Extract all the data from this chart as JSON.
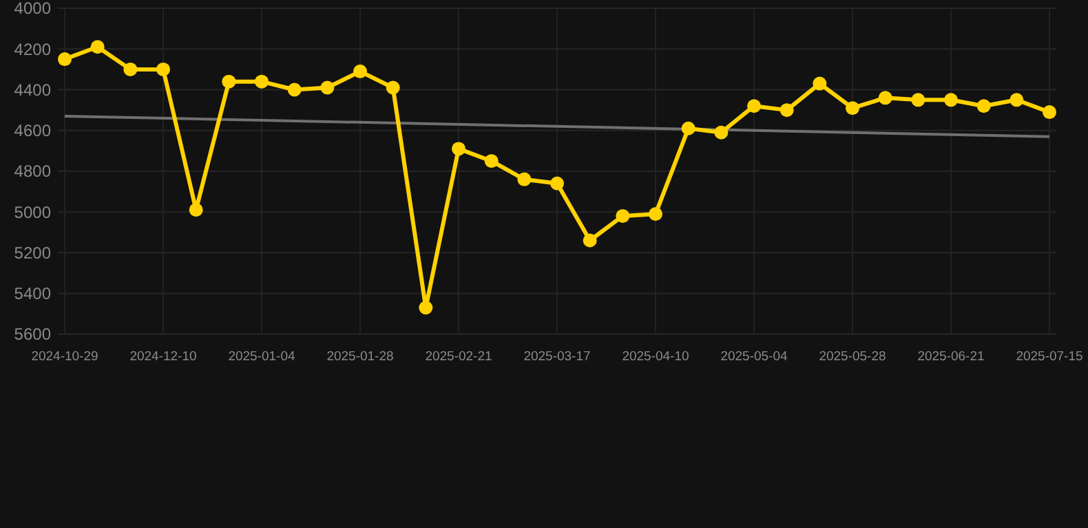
{
  "chart_data": {
    "type": "line",
    "categories": [
      "2024-10-29",
      null,
      null,
      "2024-12-10",
      null,
      null,
      "2025-01-04",
      null,
      null,
      "2025-01-28",
      null,
      null,
      "2025-02-21",
      null,
      null,
      "2025-03-17",
      null,
      null,
      "2025-04-10",
      null,
      null,
      "2025-05-04",
      null,
      null,
      "2025-05-28",
      null,
      null,
      "2025-06-21",
      null,
      null,
      "2025-07-15"
    ],
    "series": [
      {
        "color": "#ffd200",
        "values": [
          4250,
          4190,
          4300,
          4300,
          4990,
          4360,
          4360,
          4400,
          4390,
          4310,
          4390,
          5470,
          4690,
          4750,
          4840,
          4860,
          5140,
          5020,
          5010,
          4590,
          4610,
          4480,
          4500,
          4370,
          4490,
          4440,
          4450,
          4450,
          4480,
          4450,
          4510
        ]
      },
      {
        "type": "line",
        "color": "#707070",
        "marker": "none",
        "values": [
          4530,
          null,
          null,
          null,
          null,
          null,
          null,
          null,
          null,
          null,
          null,
          null,
          null,
          null,
          null,
          null,
          null,
          null,
          null,
          null,
          null,
          null,
          null,
          null,
          null,
          null,
          null,
          null,
          null,
          null,
          4630
        ]
      }
    ],
    "ylim": [
      5600,
      4000
    ],
    "yticks": [
      4000,
      4200,
      4400,
      4600,
      4800,
      5000,
      5200,
      5400,
      5600
    ],
    "grid": true,
    "marker": "circle"
  }
}
